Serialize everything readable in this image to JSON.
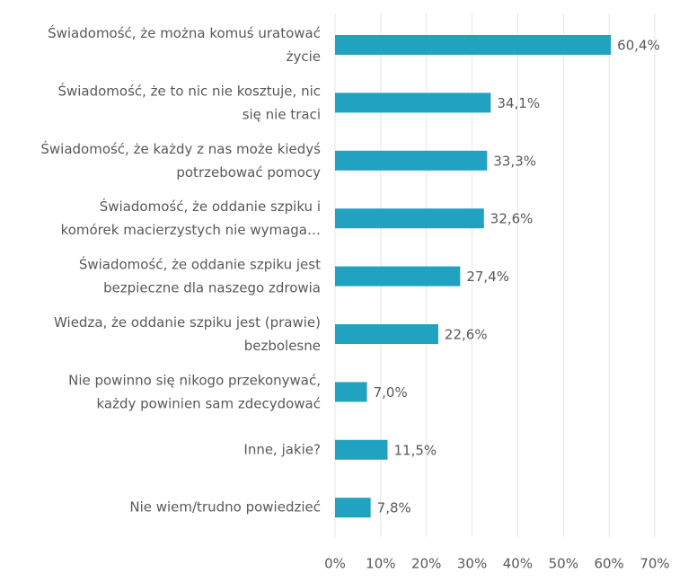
{
  "chart_data": {
    "type": "barh",
    "categories": [
      "Świadomość, że można komuś uratować\nżycie",
      "Świadomość, że to nic nie kosztuje, nic\nsię nie traci",
      "Świadomość, że każdy z nas może kiedyś\npotrzebować pomocy",
      "Świadomość, że oddanie szpiku i\nkomórek macierzystych nie wymaga…",
      "Świadomość, że oddanie szpiku jest\nbezpieczne dla naszego zdrowia",
      "Wiedza, że oddanie szpiku jest (prawie)\nbezbolesne",
      "Nie powinno się nikogo przekonywać,\nkażdy powinien sam zdecydować",
      "Inne, jakie?",
      "Nie wiem/trudno powiedzieć"
    ],
    "values": [
      60.4,
      34.1,
      33.3,
      32.6,
      27.4,
      22.6,
      7.0,
      11.5,
      7.8
    ],
    "value_labels": [
      "60,4%",
      "34,1%",
      "33,3%",
      "32,6%",
      "27,4%",
      "22,6%",
      "7,0%",
      "11,5%",
      "7,8%"
    ],
    "color": "#21a2c1",
    "xlim": [
      0,
      70
    ],
    "xticks": [
      {
        "value": 0,
        "label": "0%"
      },
      {
        "value": 10,
        "label": "10%"
      },
      {
        "value": 20,
        "label": "20%"
      },
      {
        "value": 30,
        "label": "30%"
      },
      {
        "value": 40,
        "label": "40%"
      },
      {
        "value": 50,
        "label": "50%"
      },
      {
        "value": 60,
        "label": "60%"
      },
      {
        "value": 70,
        "label": "70%"
      }
    ],
    "grid": true
  }
}
